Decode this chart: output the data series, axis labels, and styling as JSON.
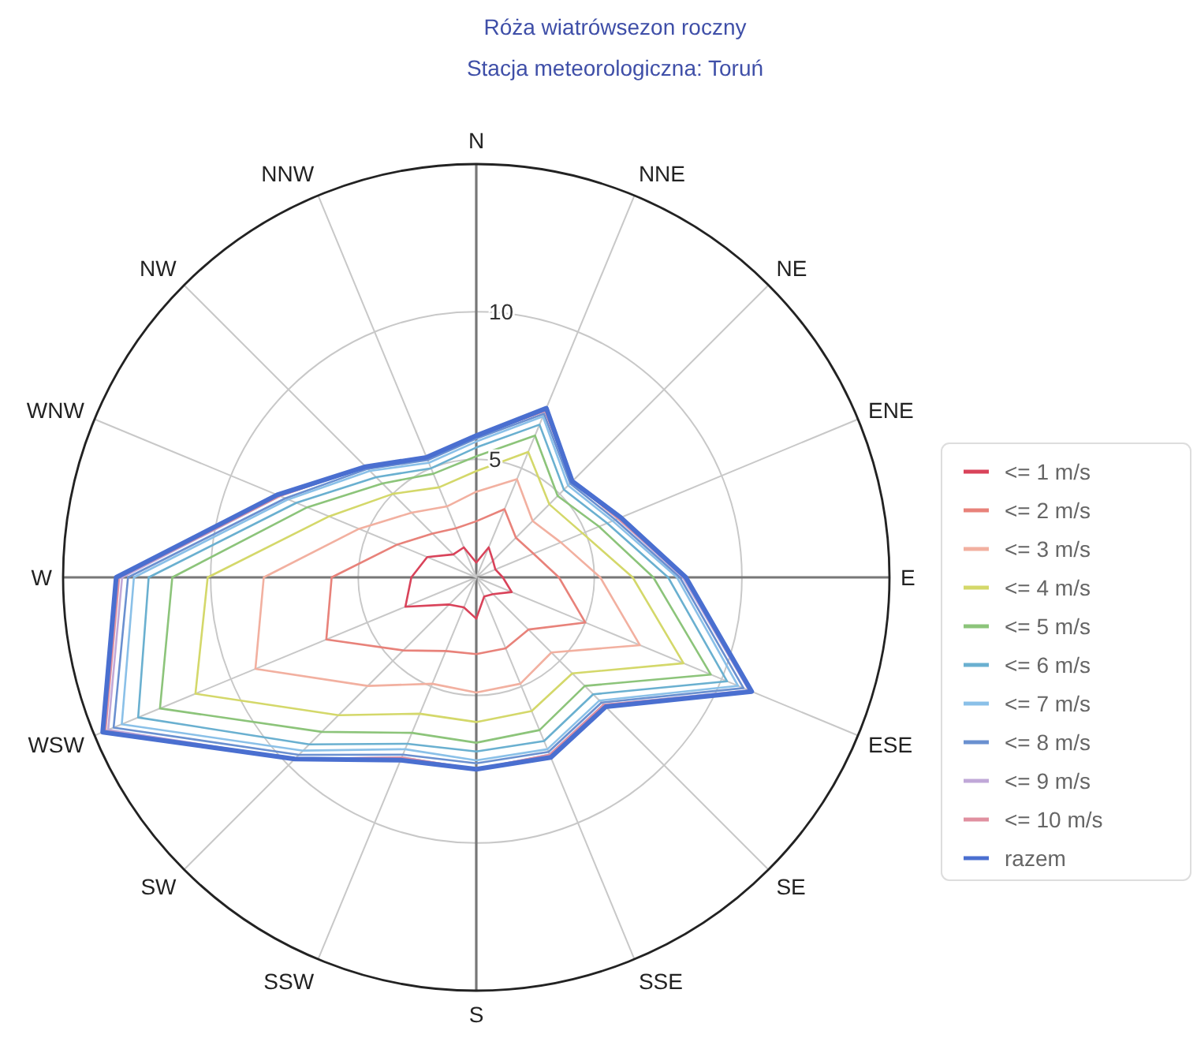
{
  "chart_data": {
    "type": "radar",
    "title": "Róża wiatrówsezon roczny",
    "subtitle": "Stacja meteorologiczna: Toruń",
    "categories": [
      "N",
      "NNE",
      "NE",
      "ENE",
      "E",
      "ESE",
      "SE",
      "SSE",
      "S",
      "SSW",
      "SW",
      "WSW",
      "W",
      "WNW",
      "NW",
      "NNW"
    ],
    "ylim": [
      1,
      15
    ],
    "yticks": [
      5,
      10
    ],
    "grid": true,
    "legend": "right",
    "marker": "none",
    "line_style": "solid",
    "series": [
      {
        "name": "<= 1 m/s",
        "color": "#d9435a",
        "values": [
          1.5,
          2.1,
          1.8,
          1.7,
          1.9,
          2.3,
          1.8,
          1.7,
          2.4,
          2.1,
          2.3,
          3.6,
          3.2,
          2.8,
          2.1,
          2.1
        ]
      },
      {
        "name": "<= 2 m/s",
        "color": "#e8827a",
        "values": [
          2.9,
          3.5,
          2.9,
          3.1,
          3.8,
          5.0,
          3.5,
          3.6,
          3.6,
          3.7,
          4.5,
          6.5,
          5.9,
          3.9,
          3.1,
          2.8
        ]
      },
      {
        "name": "<= 3 m/s",
        "color": "#f2b0a0",
        "values": [
          3.9,
          4.6,
          3.7,
          4.1,
          5.2,
          7.0,
          4.6,
          4.9,
          4.9,
          4.9,
          6.2,
          9.1,
          8.2,
          5.3,
          4.1,
          3.6
        ]
      },
      {
        "name": "<= 4 m/s",
        "color": "#d4d86a",
        "values": [
          4.6,
          5.6,
          4.5,
          4.9,
          6.3,
          8.6,
          5.6,
          5.9,
          5.9,
          6.0,
          7.6,
          11.3,
          10.1,
          6.4,
          5.0,
          4.3
        ]
      },
      {
        "name": "<= 5 m/s",
        "color": "#8cc47a",
        "values": [
          5.1,
          6.2,
          4.9,
          5.5,
          7.0,
          9.6,
          6.2,
          6.6,
          6.6,
          6.7,
          8.4,
          12.6,
          11.3,
          7.2,
          5.5,
          4.8
        ]
      },
      {
        "name": "<= 6 m/s",
        "color": "#6ab0d0",
        "values": [
          5.4,
          6.6,
          5.2,
          5.8,
          7.5,
          10.2,
          6.6,
          7.0,
          6.9,
          7.1,
          9.0,
          13.4,
          12.1,
          7.6,
          5.8,
          5.0
        ]
      },
      {
        "name": "<= 7 m/s",
        "color": "#8ac0e8",
        "values": [
          5.6,
          6.9,
          5.4,
          6.0,
          7.8,
          10.6,
          6.9,
          7.3,
          7.2,
          7.3,
          9.3,
          14.0,
          12.6,
          7.9,
          6.1,
          5.2
        ]
      },
      {
        "name": "<= 8 m/s",
        "color": "#6a90d0",
        "values": [
          5.7,
          7.0,
          5.5,
          6.1,
          7.9,
          10.8,
          7.0,
          7.4,
          7.3,
          7.5,
          9.5,
          14.3,
          12.8,
          8.0,
          6.2,
          5.3
        ]
      },
      {
        "name": "<= 9 m/s",
        "color": "#c0a8d8",
        "values": [
          5.8,
          7.1,
          5.6,
          6.2,
          8.0,
          11.0,
          7.1,
          7.5,
          7.5,
          7.6,
          9.7,
          14.5,
          13.0,
          8.2,
          6.3,
          5.4
        ]
      },
      {
        "name": "<= 10 m/s",
        "color": "#e090a0",
        "values": [
          5.8,
          7.1,
          5.6,
          6.2,
          8.1,
          11.1,
          7.1,
          7.5,
          7.5,
          7.6,
          9.7,
          14.6,
          13.1,
          8.2,
          6.3,
          5.4
        ]
      },
      {
        "name": "razem",
        "color": "#4a6fd0",
        "values": [
          5.8,
          7.2,
          5.6,
          6.3,
          8.1,
          11.1,
          7.2,
          7.6,
          7.5,
          7.7,
          9.7,
          14.7,
          13.2,
          8.3,
          6.3,
          5.4
        ]
      }
    ]
  }
}
